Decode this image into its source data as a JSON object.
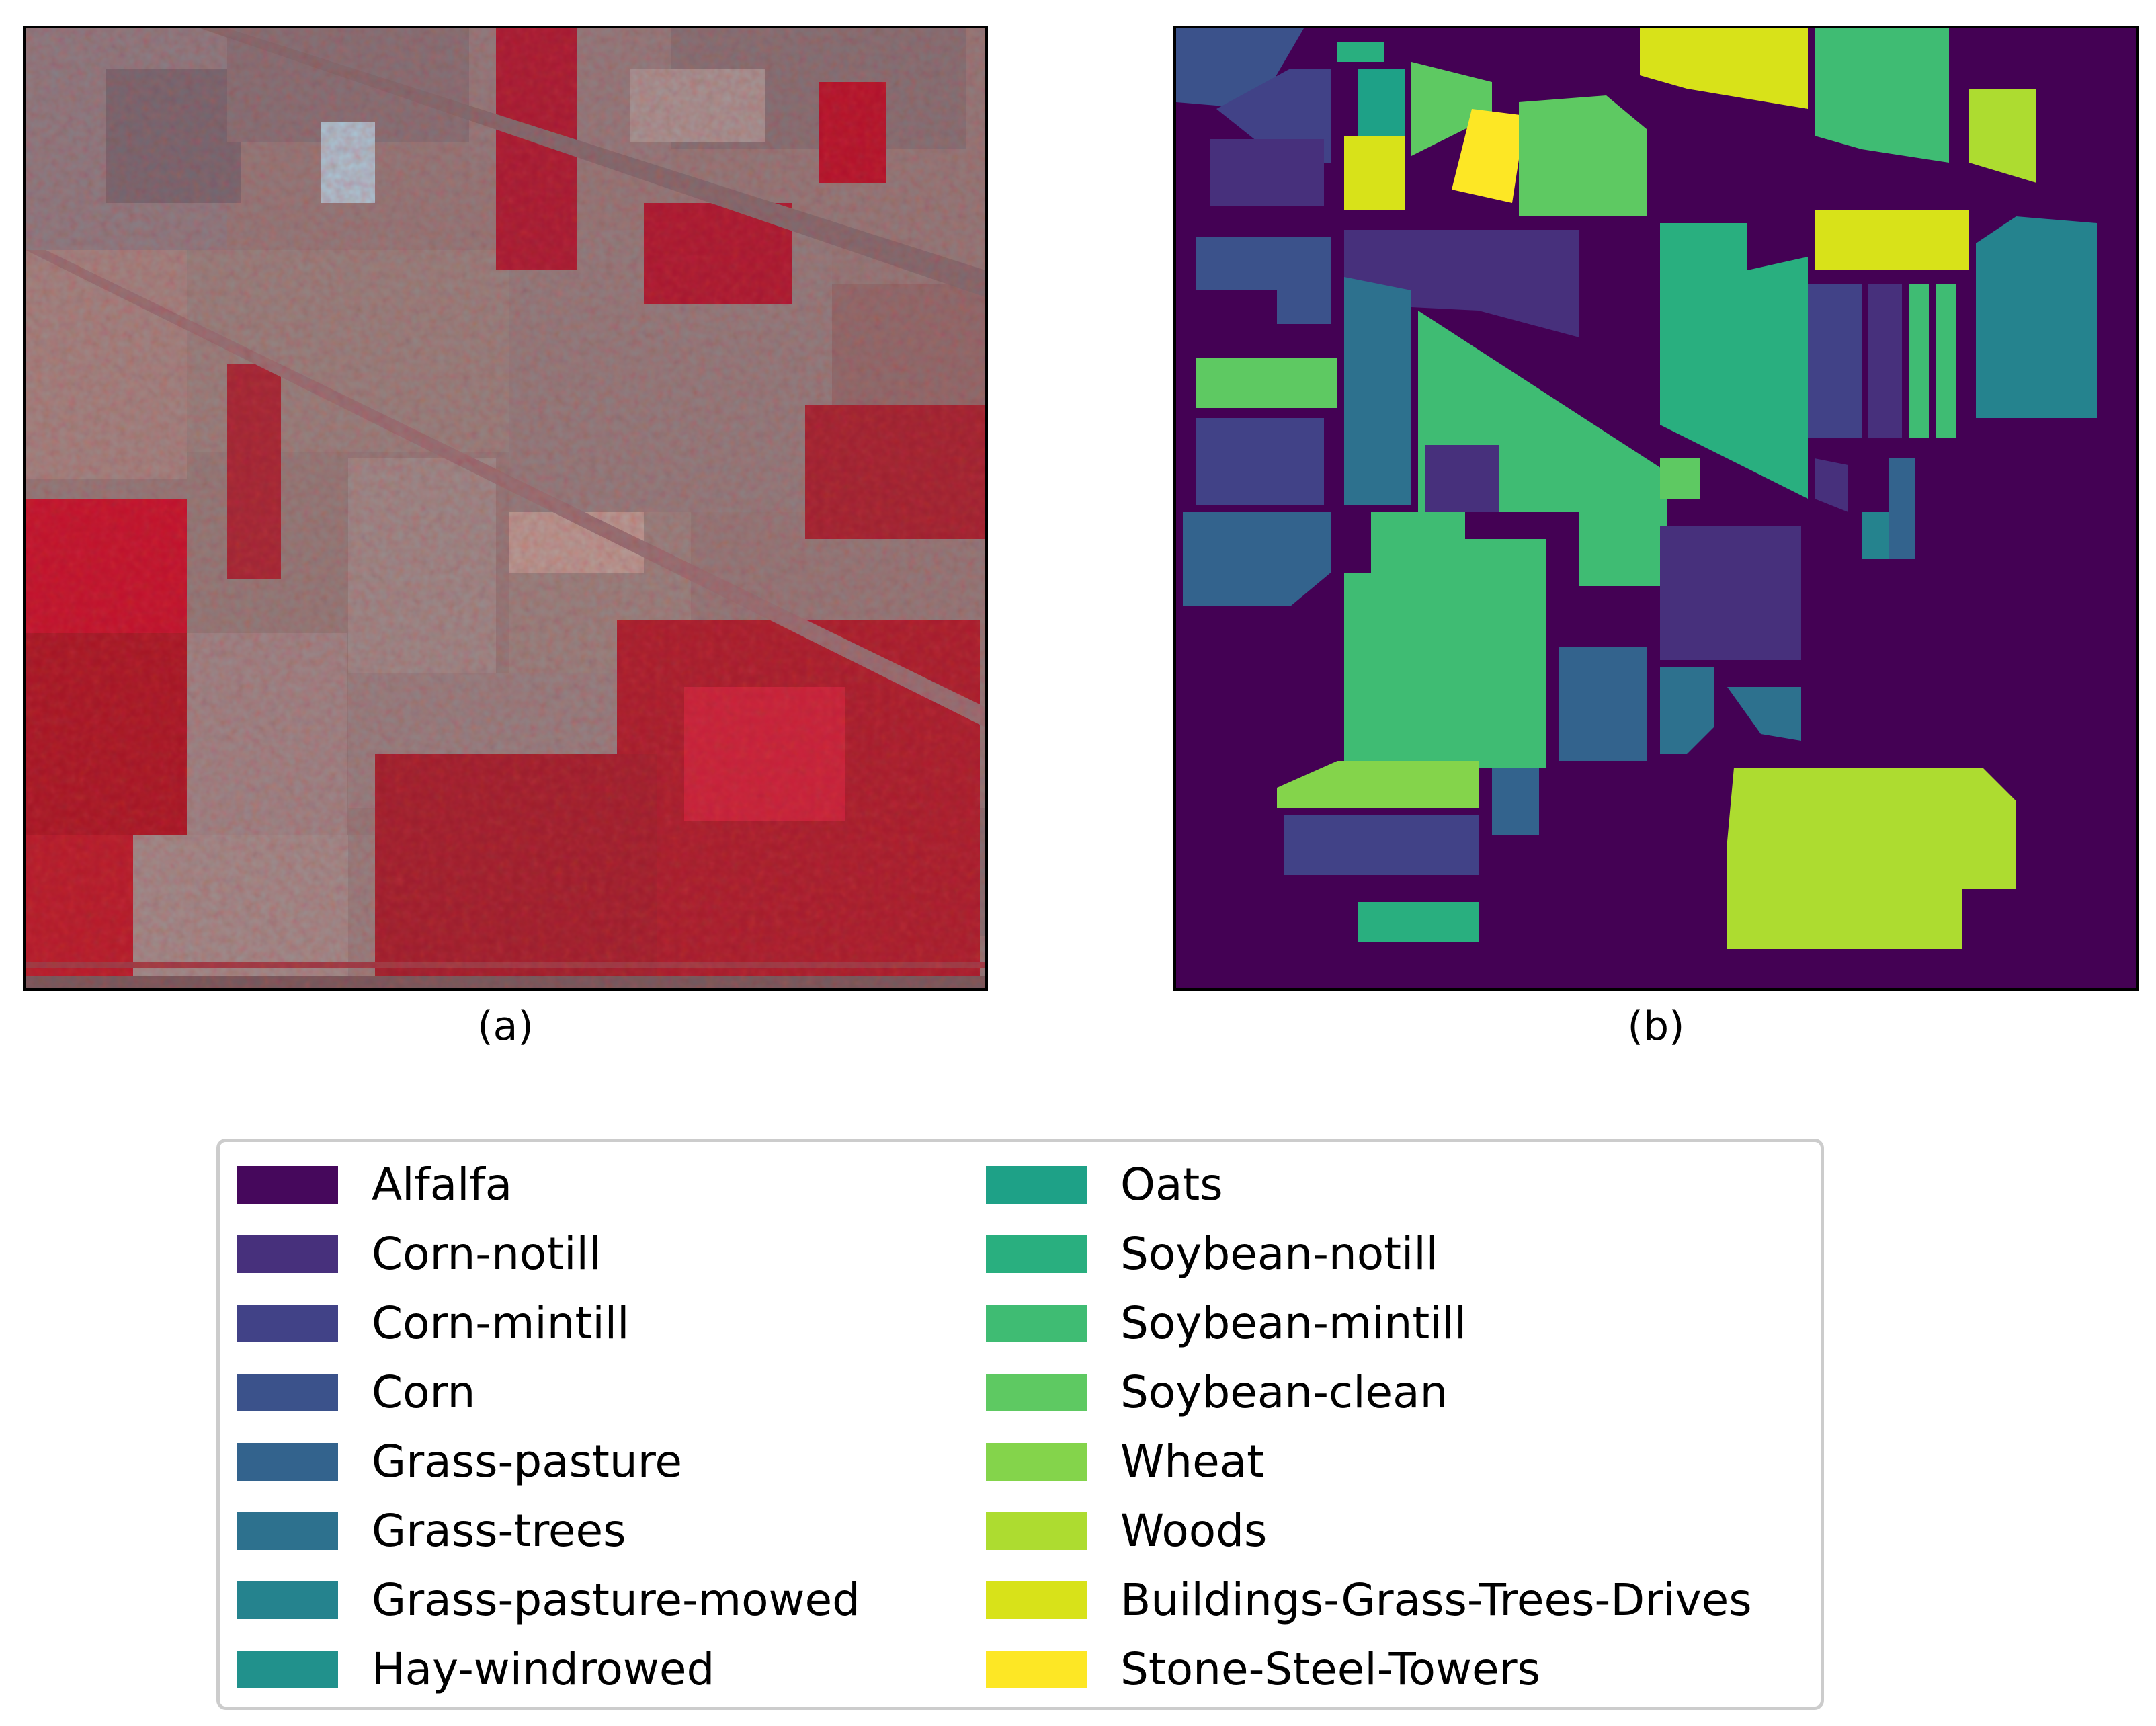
{
  "panels": {
    "a": {
      "caption": "(a)"
    },
    "b": {
      "caption": "(b)"
    }
  },
  "legend": {
    "column_1": [
      {
        "label": "Alfalfa",
        "color": "#46085c"
      },
      {
        "label": "Corn-notill",
        "color": "#47307c"
      },
      {
        "label": "Corn-mintill",
        "color": "#414287"
      },
      {
        "label": "Corn",
        "color": "#3b528b"
      },
      {
        "label": "Grass-pasture",
        "color": "#33638d"
      },
      {
        "label": "Grass-trees",
        "color": "#2d718e"
      },
      {
        "label": "Grass-pasture-mowed",
        "color": "#25838e"
      },
      {
        "label": "Hay-windrowed",
        "color": "#21918c"
      }
    ],
    "column_2": [
      {
        "label": "Oats",
        "color": "#1ea187"
      },
      {
        "label": "Soybean-notill",
        "color": "#29af7f"
      },
      {
        "label": "Soybean-mintill",
        "color": "#3fbc73"
      },
      {
        "label": "Soybean-clean",
        "color": "#5ec962"
      },
      {
        "label": "Wheat",
        "color": "#84d44b"
      },
      {
        "label": "Woods",
        "color": "#addc30"
      },
      {
        "label": "Buildings-Grass-Trees-Drives",
        "color": "#d8e219"
      },
      {
        "label": "Stone-Steel-Towers",
        "color": "#fde725"
      }
    ]
  }
}
